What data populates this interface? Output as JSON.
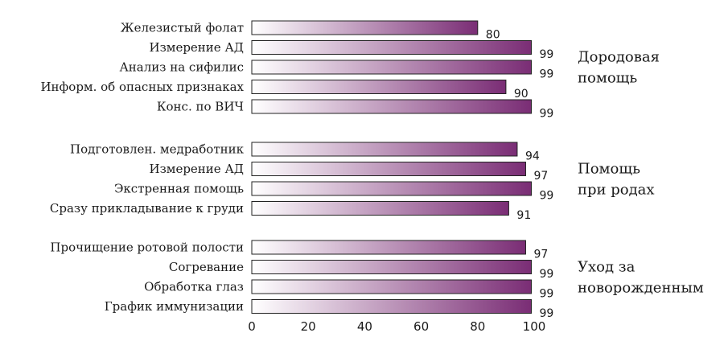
{
  "chart_data": {
    "type": "bar",
    "orientation": "horizontal",
    "xlim": [
      0,
      100
    ],
    "x_ticks": [
      0,
      20,
      40,
      60,
      80,
      100
    ],
    "grid": false,
    "legend": "none",
    "colors": {
      "bar_start": "#ffffff",
      "bar_end": "#7a2d75",
      "text": "#1a1a1a",
      "outline": "#222222"
    },
    "groups": [
      {
        "label": "Дородовая\nпомощь",
        "items": [
          {
            "category": "Железистый фолат",
            "value": 80
          },
          {
            "category": "Измерение АД",
            "value": 99
          },
          {
            "category": "Анализ на сифилис",
            "value": 99
          },
          {
            "category": "Информ. об опасных признаках",
            "value": 90
          },
          {
            "category": "Конс. по ВИЧ",
            "value": 99
          }
        ]
      },
      {
        "label": "Помощь\nпри родах",
        "items": [
          {
            "category": "Подготовлен. медработник",
            "value": 94
          },
          {
            "category": "Измерение АД",
            "value": 97
          },
          {
            "category": "Экстренная помощь",
            "value": 99
          },
          {
            "category": "Сразу прикладывание к груди",
            "value": 91
          }
        ]
      },
      {
        "label": "Уход за\nноворожденным",
        "items": [
          {
            "category": "Прочищение ротовой полости",
            "value": 97
          },
          {
            "category": "Согревание",
            "value": 99
          },
          {
            "category": "Обработка глаз",
            "value": 99
          },
          {
            "category": "График иммунизации",
            "value": 99
          }
        ]
      }
    ]
  }
}
